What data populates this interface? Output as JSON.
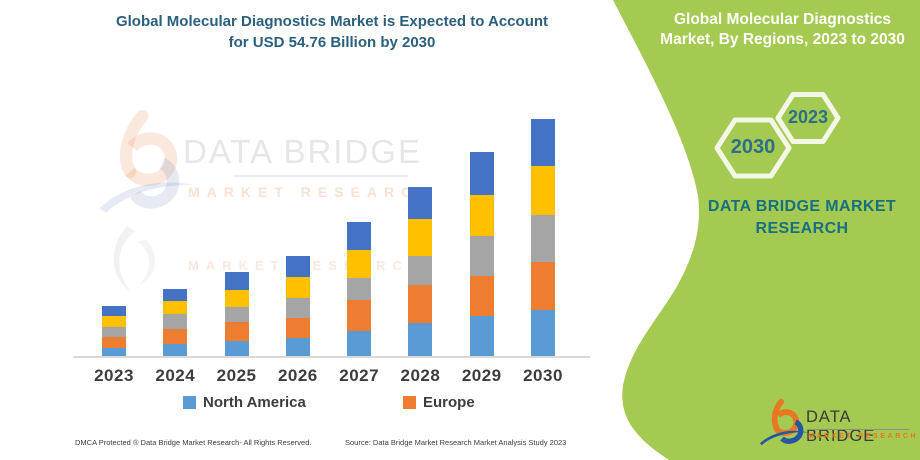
{
  "page": {
    "title_line1": "Global Molecular Diagnostics Market is Expected to Account",
    "title_line2": "for USD 54.76 Billion by 2030"
  },
  "side_panel": {
    "accent_green": "#a4ca52",
    "heading_line1": "Global Molecular Diagnostics",
    "heading_line2": "Market, By Regions, 2023 to 2030",
    "hexagon_small_label": "2023",
    "hexagon_large_label": "2030",
    "brand_line1": "DATA BRIDGE MARKET",
    "brand_line2": "RESEARCH"
  },
  "watermark": {
    "brand": "DATA BRIDGE",
    "sub": "MARKET RESEARCH",
    "sub_repeat": "MARKET RESEARCH"
  },
  "legend": [
    {
      "label": "North America",
      "color": "#5B9BD5"
    },
    {
      "label": "Europe",
      "color": "#ED7D31"
    }
  ],
  "footer": {
    "left": "DMCA Protected ® Data Bridge Market Research-  All Rights Reserved.",
    "right": "Source: Data Bridge Market Research  Market Analysis Study 2023"
  },
  "corner_logo": {
    "name": "DATA BRIDGE",
    "sub": "MARKET RESEARCH"
  },
  "chart_data": {
    "type": "bar",
    "stacked": true,
    "unit": "USD Billion",
    "value_axis_hidden": true,
    "ylim": [
      0,
      60
    ],
    "categories": [
      "2023",
      "2024",
      "2025",
      "2026",
      "2027",
      "2028",
      "2029",
      "2030"
    ],
    "series": [
      {
        "name": "North America",
        "color": "#5B9BD5",
        "values": [
          2.1,
          3.0,
          3.7,
          4.4,
          6.0,
          7.8,
          9.4,
          10.7
        ]
      },
      {
        "name": "Europe",
        "color": "#ED7D31",
        "values": [
          2.5,
          3.5,
          4.4,
          4.6,
          7.1,
          8.7,
          9.2,
          11.1
        ]
      },
      {
        "name": "Unlabeled (gray)",
        "color": "#A5A5A5",
        "values": [
          2.4,
          3.5,
          3.5,
          4.6,
          5.1,
          6.7,
          9.2,
          10.9
        ]
      },
      {
        "name": "Unlabeled (yellow)",
        "color": "#FFC000",
        "values": [
          2.5,
          2.8,
          3.9,
          4.8,
          6.4,
          8.5,
          9.4,
          11.3
        ]
      },
      {
        "name": "Unlabeled (dark blue)",
        "color": "#4472C4",
        "values": [
          2.3,
          2.8,
          4.1,
          4.8,
          6.4,
          7.4,
          9.9,
          10.76
        ]
      }
    ],
    "title": "Global Molecular Diagnostics Market is Expected to Account for USD 54.76 Billion by 2030",
    "xlabel": "",
    "ylabel": ""
  }
}
